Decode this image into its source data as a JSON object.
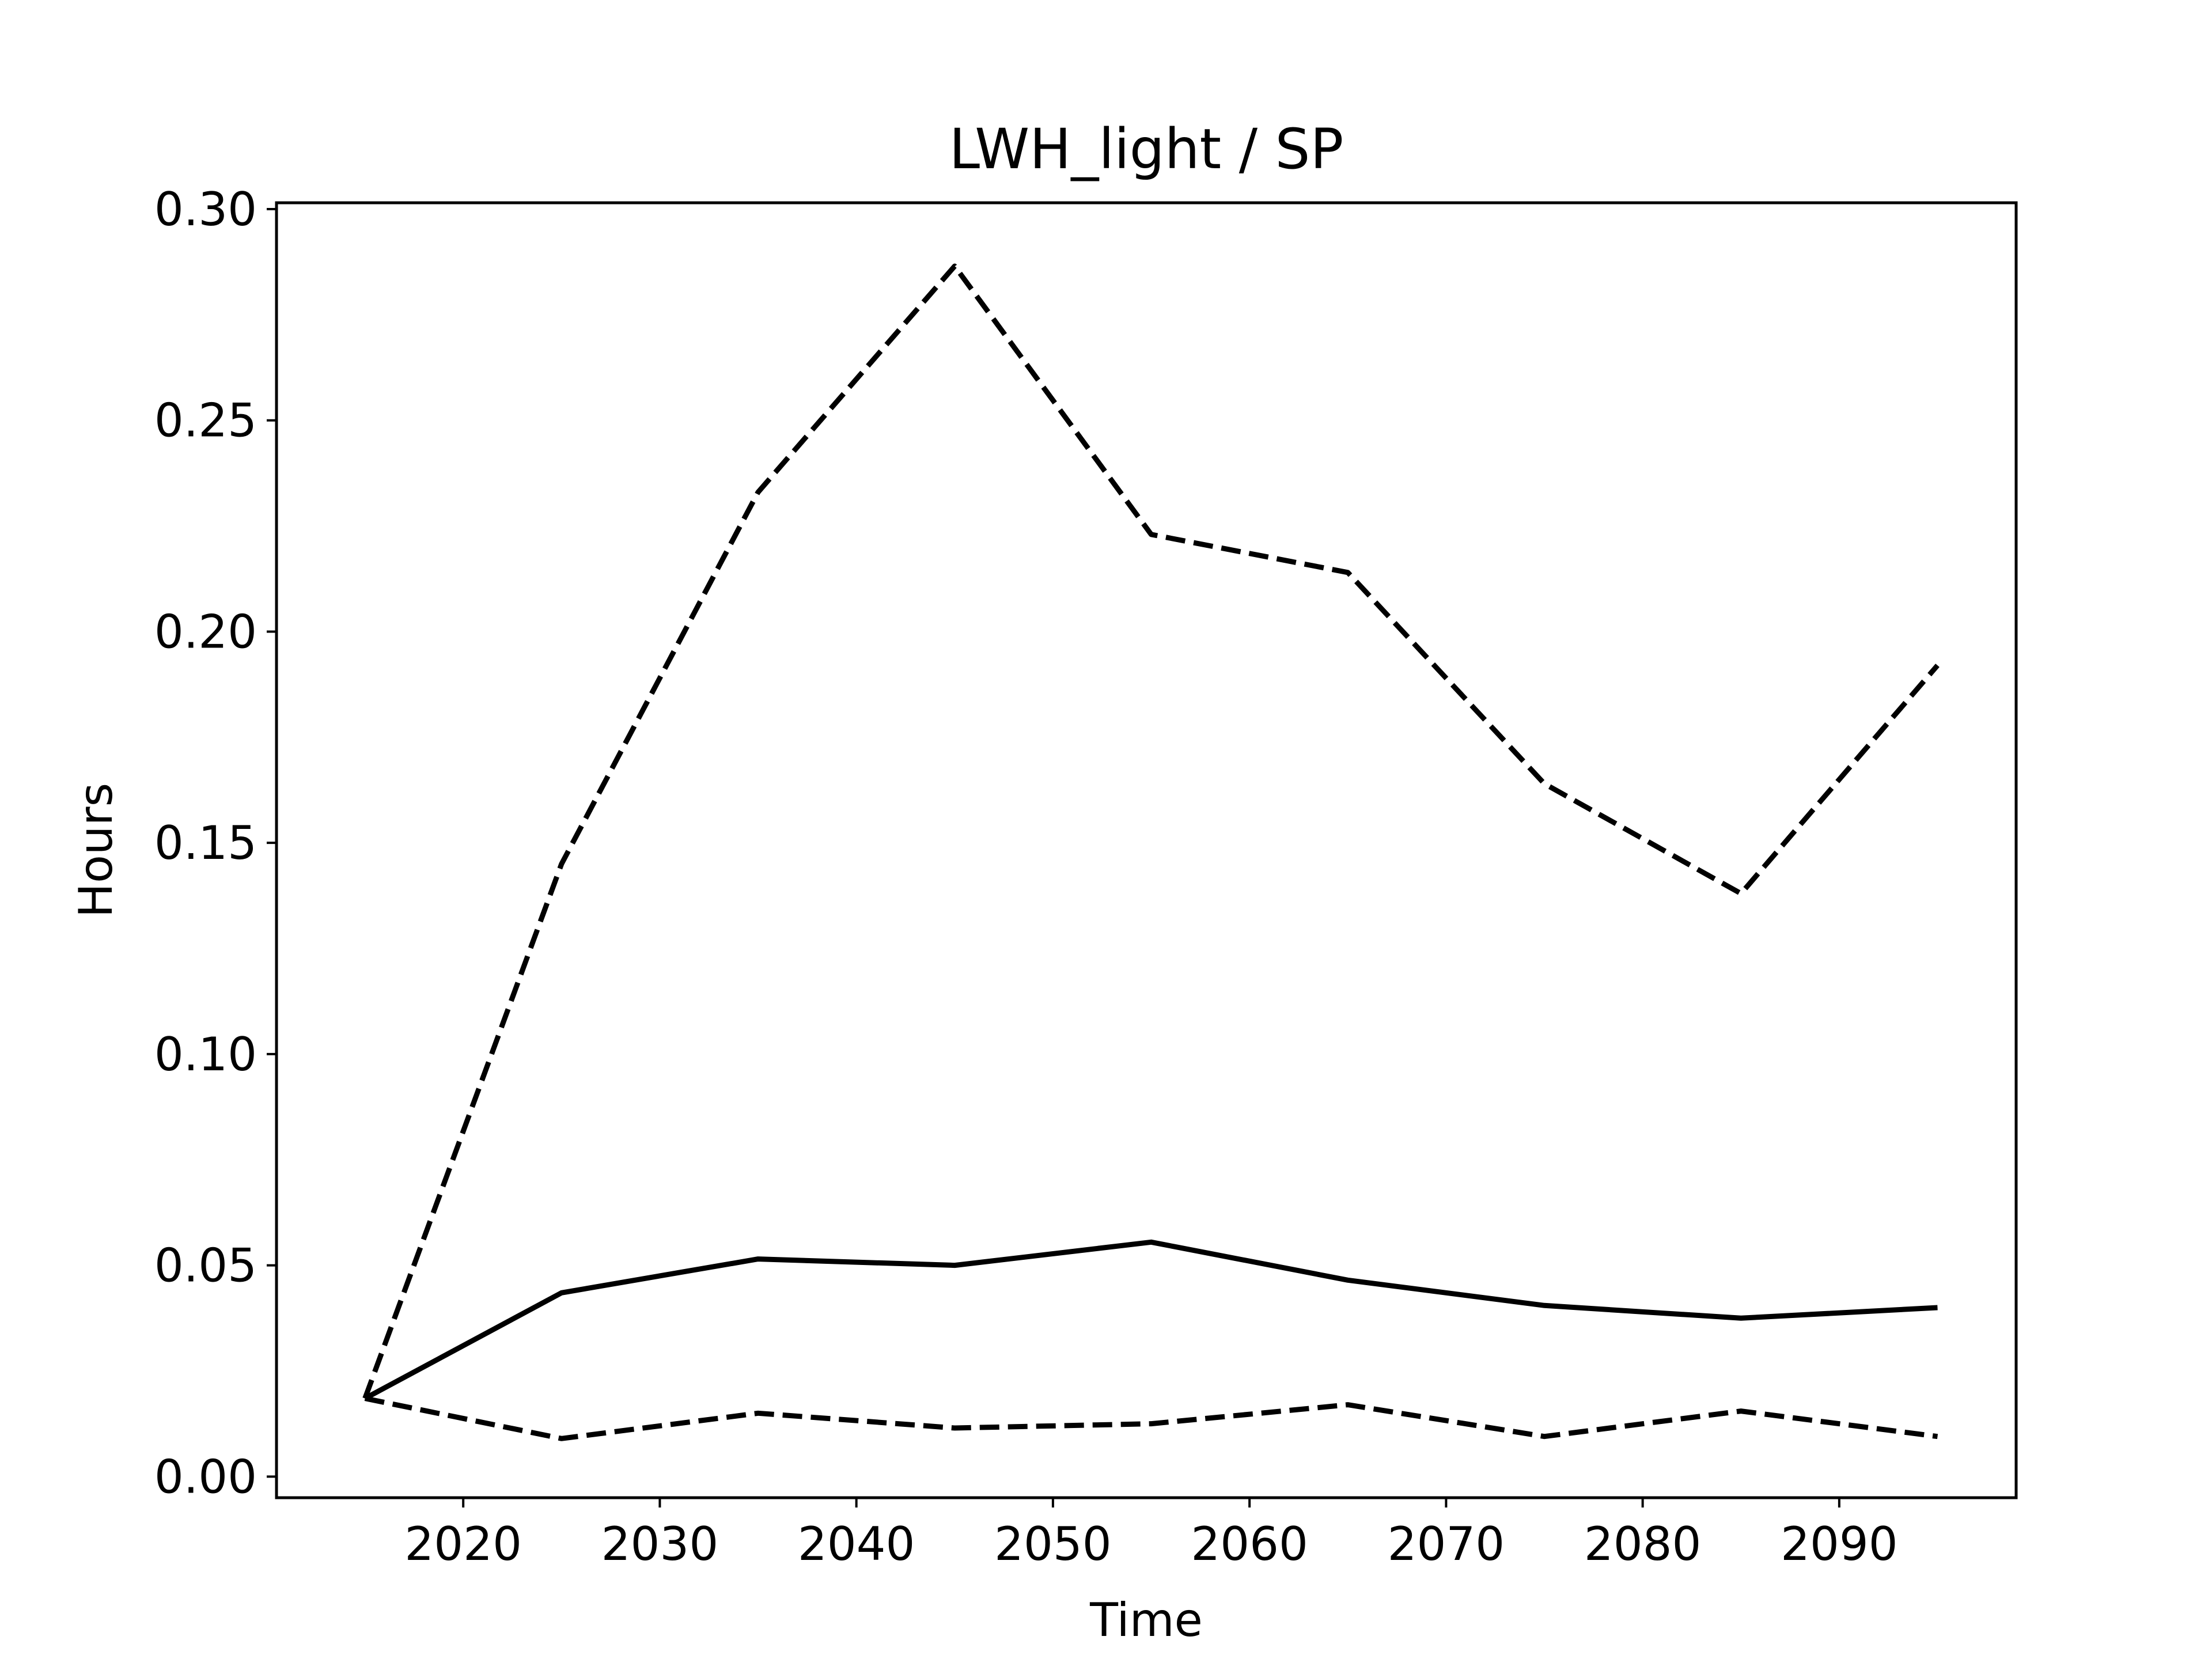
{
  "chart_data": {
    "type": "line",
    "title": "LWH_light / SP",
    "xlabel": "Time",
    "ylabel": "Hours",
    "xlim": [
      2010.5,
      2099.0
    ],
    "ylim": [
      -0.005,
      0.3015
    ],
    "xticks": [
      "2020",
      "2030",
      "2040",
      "2050",
      "2060",
      "2070",
      "2080",
      "2090"
    ],
    "yticks": [
      "0.00",
      "0.05",
      "0.10",
      "0.15",
      "0.20",
      "0.25",
      "0.30"
    ],
    "x": [
      2015,
      2025,
      2035,
      2045,
      2055,
      2065,
      2075,
      2085,
      2095
    ],
    "grid": false,
    "series": [
      {
        "style": "solid",
        "color": "#000000",
        "values": [
          0.0185,
          0.0435,
          0.0515,
          0.05,
          0.0555,
          0.0465,
          0.0405,
          0.0375,
          0.04
        ]
      },
      {
        "style": "dashed",
        "color": "#000000",
        "values": [
          0.0185,
          0.145,
          0.233,
          0.2865,
          0.223,
          0.214,
          0.164,
          0.138,
          0.192
        ]
      },
      {
        "style": "dashed",
        "color": "#000000",
        "values": [
          0.0185,
          0.009,
          0.015,
          0.0115,
          0.0125,
          0.017,
          0.0095,
          0.0155,
          0.0095
        ]
      }
    ]
  }
}
